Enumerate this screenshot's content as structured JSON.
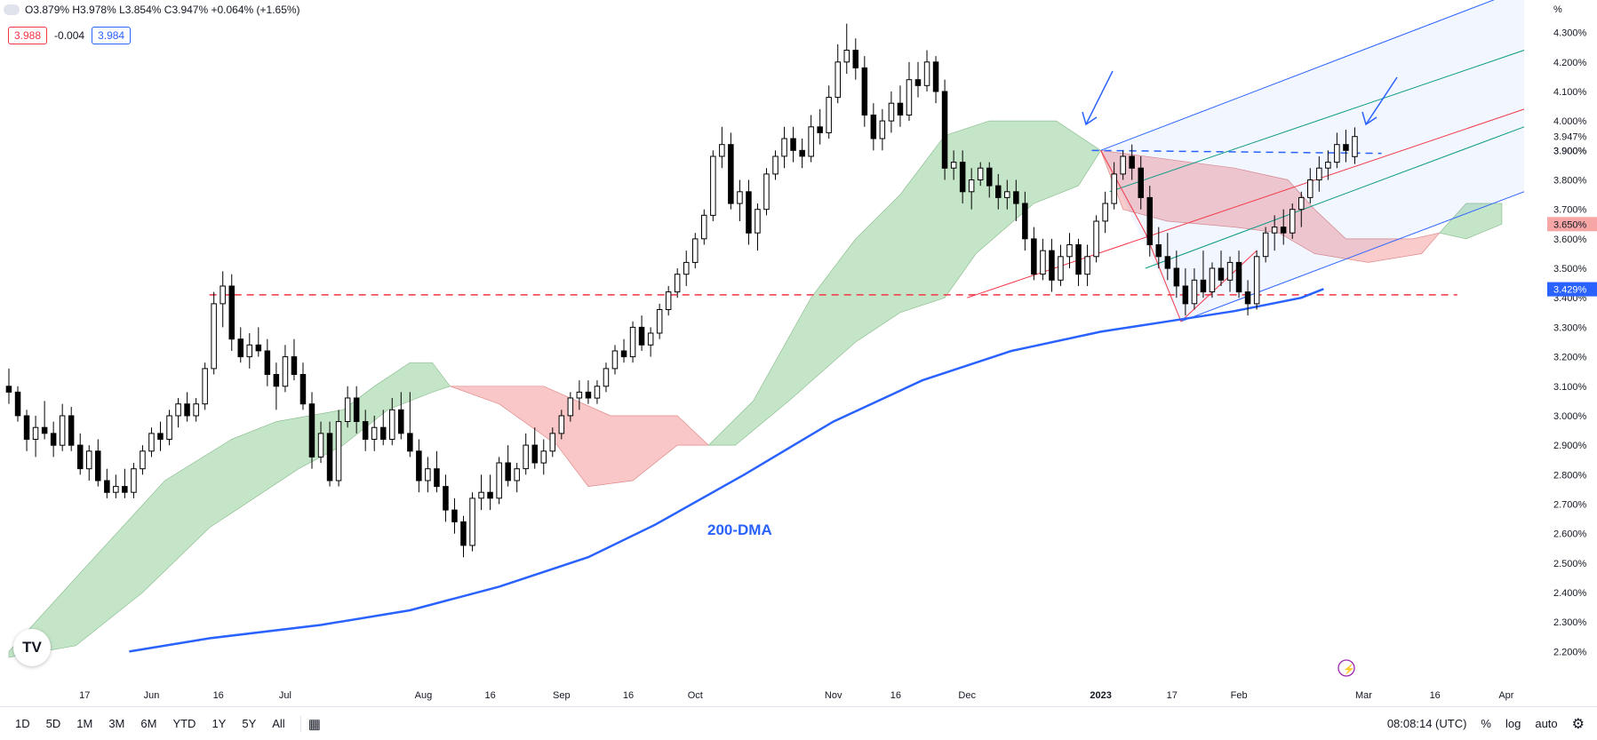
{
  "header": {
    "ohlc": "O3.879% H3.978% L3.854% C3.947% +0.064% (+1.65%)",
    "bid": "3.988",
    "spread": "-0.004",
    "ask": "3.984"
  },
  "annotation_label": "200-DMA",
  "bottom_bar": {
    "ranges": [
      "1D",
      "5D",
      "1M",
      "3M",
      "6M",
      "YTD",
      "1Y",
      "5Y",
      "All"
    ],
    "time": "08:08:14 (UTC)",
    "percent": "%",
    "log": "log",
    "auto": "auto"
  },
  "colors": {
    "up_candle": "#ffffff",
    "down_candle": "#000000",
    "cloud_bull": "#b7dfbb",
    "cloud_bear": "#f7b9b9",
    "dma": "#2962ff",
    "support": "#f23645",
    "tag_last": "#f23645",
    "tag_dma": "#2962ff"
  },
  "chart_data": {
    "type": "candlestick",
    "y_unit": "%",
    "ylim": [
      2.15,
      4.35
    ],
    "y_ticks": [
      "4.300%",
      "4.200%",
      "4.100%",
      "4.000%",
      "3.900%",
      "3.800%",
      "3.700%",
      "3.600%",
      "3.500%",
      "3.400%",
      "3.300%",
      "3.200%",
      "3.100%",
      "3.000%",
      "2.900%",
      "2.800%",
      "2.700%",
      "2.600%",
      "2.500%",
      "2.400%",
      "2.300%",
      "2.200%"
    ],
    "y_axis_unit_label": "%",
    "x_ticks": [
      "17",
      "Jun",
      "16",
      "Jul",
      "Aug",
      "16",
      "Sep",
      "16",
      "Oct",
      "Nov",
      "16",
      "Dec",
      "2023",
      "17",
      "Feb",
      "Mar",
      "16",
      "Apr"
    ],
    "x_tick_days": [
      -228,
      -213,
      -198,
      -183,
      -152,
      -137,
      -121,
      -106,
      -91,
      -60,
      -46,
      -30,
      0,
      16,
      31,
      59,
      75,
      91
    ],
    "x_range_days": [
      -245,
      95
    ],
    "price_tags": [
      {
        "label": "3.947%",
        "value": 3.947,
        "style": "plain"
      },
      {
        "label": "3.900%",
        "value": 3.9,
        "style": "plain"
      },
      {
        "label": "3.650%",
        "value": 3.65,
        "style": "cloud"
      },
      {
        "label": "3.429%",
        "value": 3.429,
        "style": "dma"
      }
    ],
    "series": [
      {
        "name": "200-DMA",
        "kind": "line",
        "points": [
          [
            -218,
            2.2
          ],
          [
            -200,
            2.245
          ],
          [
            -175,
            2.29
          ],
          [
            -155,
            2.34
          ],
          [
            -135,
            2.42
          ],
          [
            -115,
            2.52
          ],
          [
            -100,
            2.63
          ],
          [
            -80,
            2.8
          ],
          [
            -60,
            2.98
          ],
          [
            -40,
            3.12
          ],
          [
            -20,
            3.22
          ],
          [
            0,
            3.285
          ],
          [
            15,
            3.32
          ],
          [
            30,
            3.355
          ],
          [
            45,
            3.4
          ],
          [
            50,
            3.43
          ]
        ]
      }
    ],
    "candles": [
      {
        "t": -245,
        "o": 3.1,
        "h": 3.16,
        "l": 3.04,
        "c": 3.08
      },
      {
        "t": -243,
        "o": 3.08,
        "h": 3.1,
        "l": 2.98,
        "c": 3.0
      },
      {
        "t": -241,
        "o": 3.0,
        "h": 3.02,
        "l": 2.88,
        "c": 2.92
      },
      {
        "t": -239,
        "o": 2.92,
        "h": 3.0,
        "l": 2.86,
        "c": 2.96
      },
      {
        "t": -237,
        "o": 2.96,
        "h": 3.05,
        "l": 2.92,
        "c": 2.94
      },
      {
        "t": -235,
        "o": 2.94,
        "h": 2.98,
        "l": 2.86,
        "c": 2.9
      },
      {
        "t": -233,
        "o": 2.9,
        "h": 3.04,
        "l": 2.88,
        "c": 3.0
      },
      {
        "t": -231,
        "o": 3.0,
        "h": 3.03,
        "l": 2.88,
        "c": 2.9
      },
      {
        "t": -229,
        "o": 2.9,
        "h": 2.94,
        "l": 2.8,
        "c": 2.82
      },
      {
        "t": -227,
        "o": 2.82,
        "h": 2.9,
        "l": 2.78,
        "c": 2.88
      },
      {
        "t": -225,
        "o": 2.88,
        "h": 2.92,
        "l": 2.76,
        "c": 2.78
      },
      {
        "t": -223,
        "o": 2.78,
        "h": 2.82,
        "l": 2.72,
        "c": 2.74
      },
      {
        "t": -221,
        "o": 2.74,
        "h": 2.8,
        "l": 2.72,
        "c": 2.76
      },
      {
        "t": -219,
        "o": 2.76,
        "h": 2.82,
        "l": 2.72,
        "c": 2.74
      },
      {
        "t": -217,
        "o": 2.74,
        "h": 2.84,
        "l": 2.72,
        "c": 2.82
      },
      {
        "t": -215,
        "o": 2.82,
        "h": 2.9,
        "l": 2.8,
        "c": 2.88
      },
      {
        "t": -213,
        "o": 2.88,
        "h": 2.96,
        "l": 2.86,
        "c": 2.94
      },
      {
        "t": -211,
        "o": 2.94,
        "h": 2.98,
        "l": 2.88,
        "c": 2.92
      },
      {
        "t": -209,
        "o": 2.92,
        "h": 3.02,
        "l": 2.9,
        "c": 3.0
      },
      {
        "t": -207,
        "o": 3.0,
        "h": 3.06,
        "l": 2.96,
        "c": 3.04
      },
      {
        "t": -205,
        "o": 3.04,
        "h": 3.08,
        "l": 2.98,
        "c": 3.0
      },
      {
        "t": -203,
        "o": 3.0,
        "h": 3.06,
        "l": 2.98,
        "c": 3.04
      },
      {
        "t": -201,
        "o": 3.04,
        "h": 3.18,
        "l": 3.02,
        "c": 3.16
      },
      {
        "t": -199,
        "o": 3.16,
        "h": 3.42,
        "l": 3.14,
        "c": 3.38
      },
      {
        "t": -197,
        "o": 3.38,
        "h": 3.49,
        "l": 3.3,
        "c": 3.44
      },
      {
        "t": -195,
        "o": 3.44,
        "h": 3.48,
        "l": 3.22,
        "c": 3.26
      },
      {
        "t": -193,
        "o": 3.26,
        "h": 3.3,
        "l": 3.18,
        "c": 3.2
      },
      {
        "t": -191,
        "o": 3.2,
        "h": 3.28,
        "l": 3.16,
        "c": 3.24
      },
      {
        "t": -189,
        "o": 3.24,
        "h": 3.3,
        "l": 3.2,
        "c": 3.22
      },
      {
        "t": -187,
        "o": 3.22,
        "h": 3.26,
        "l": 3.1,
        "c": 3.14
      },
      {
        "t": -185,
        "o": 3.14,
        "h": 3.18,
        "l": 3.02,
        "c": 3.1
      },
      {
        "t": -183,
        "o": 3.1,
        "h": 3.24,
        "l": 3.08,
        "c": 3.2
      },
      {
        "t": -181,
        "o": 3.2,
        "h": 3.26,
        "l": 3.12,
        "c": 3.14
      },
      {
        "t": -179,
        "o": 3.14,
        "h": 3.18,
        "l": 3.02,
        "c": 3.04
      },
      {
        "t": -177,
        "o": 3.04,
        "h": 3.08,
        "l": 2.82,
        "c": 2.86
      },
      {
        "t": -175,
        "o": 2.86,
        "h": 2.98,
        "l": 2.84,
        "c": 2.94
      },
      {
        "t": -173,
        "o": 2.94,
        "h": 2.98,
        "l": 2.76,
        "c": 2.78
      },
      {
        "t": -171,
        "o": 2.78,
        "h": 3.02,
        "l": 2.76,
        "c": 2.98
      },
      {
        "t": -169,
        "o": 2.98,
        "h": 3.1,
        "l": 2.96,
        "c": 3.06
      },
      {
        "t": -167,
        "o": 3.06,
        "h": 3.1,
        "l": 2.94,
        "c": 2.98
      },
      {
        "t": -165,
        "o": 2.98,
        "h": 3.02,
        "l": 2.88,
        "c": 2.92
      },
      {
        "t": -163,
        "o": 2.92,
        "h": 3.0,
        "l": 2.88,
        "c": 2.96
      },
      {
        "t": -161,
        "o": 2.96,
        "h": 3.02,
        "l": 2.9,
        "c": 2.92
      },
      {
        "t": -159,
        "o": 2.92,
        "h": 3.06,
        "l": 2.9,
        "c": 3.02
      },
      {
        "t": -157,
        "o": 3.02,
        "h": 3.08,
        "l": 2.92,
        "c": 2.94
      },
      {
        "t": -155,
        "o": 2.94,
        "h": 3.08,
        "l": 2.86,
        "c": 2.88
      },
      {
        "t": -153,
        "o": 2.88,
        "h": 2.92,
        "l": 2.74,
        "c": 2.78
      },
      {
        "t": -151,
        "o": 2.78,
        "h": 2.86,
        "l": 2.74,
        "c": 2.82
      },
      {
        "t": -149,
        "o": 2.82,
        "h": 2.88,
        "l": 2.74,
        "c": 2.76
      },
      {
        "t": -147,
        "o": 2.76,
        "h": 2.8,
        "l": 2.64,
        "c": 2.68
      },
      {
        "t": -145,
        "o": 2.68,
        "h": 2.72,
        "l": 2.6,
        "c": 2.64
      },
      {
        "t": -143,
        "o": 2.64,
        "h": 2.66,
        "l": 2.52,
        "c": 2.56
      },
      {
        "t": -141,
        "o": 2.56,
        "h": 2.74,
        "l": 2.54,
        "c": 2.72
      },
      {
        "t": -139,
        "o": 2.72,
        "h": 2.8,
        "l": 2.68,
        "c": 2.74
      },
      {
        "t": -137,
        "o": 2.74,
        "h": 2.8,
        "l": 2.68,
        "c": 2.72
      },
      {
        "t": -135,
        "o": 2.72,
        "h": 2.86,
        "l": 2.7,
        "c": 2.84
      },
      {
        "t": -133,
        "o": 2.84,
        "h": 2.9,
        "l": 2.76,
        "c": 2.78
      },
      {
        "t": -131,
        "o": 2.78,
        "h": 2.84,
        "l": 2.74,
        "c": 2.82
      },
      {
        "t": -129,
        "o": 2.82,
        "h": 2.94,
        "l": 2.8,
        "c": 2.9
      },
      {
        "t": -127,
        "o": 2.9,
        "h": 2.96,
        "l": 2.82,
        "c": 2.84
      },
      {
        "t": -125,
        "o": 2.84,
        "h": 2.92,
        "l": 2.8,
        "c": 2.88
      },
      {
        "t": -123,
        "o": 2.88,
        "h": 2.96,
        "l": 2.86,
        "c": 2.94
      },
      {
        "t": -121,
        "o": 2.94,
        "h": 3.02,
        "l": 2.92,
        "c": 3.0
      },
      {
        "t": -119,
        "o": 3.0,
        "h": 3.08,
        "l": 2.98,
        "c": 3.06
      },
      {
        "t": -117,
        "o": 3.06,
        "h": 3.12,
        "l": 3.02,
        "c": 3.08
      },
      {
        "t": -115,
        "o": 3.08,
        "h": 3.12,
        "l": 3.04,
        "c": 3.06
      },
      {
        "t": -113,
        "o": 3.06,
        "h": 3.12,
        "l": 3.04,
        "c": 3.1
      },
      {
        "t": -111,
        "o": 3.1,
        "h": 3.18,
        "l": 3.08,
        "c": 3.16
      },
      {
        "t": -109,
        "o": 3.16,
        "h": 3.24,
        "l": 3.14,
        "c": 3.22
      },
      {
        "t": -107,
        "o": 3.22,
        "h": 3.26,
        "l": 3.18,
        "c": 3.2
      },
      {
        "t": -105,
        "o": 3.2,
        "h": 3.32,
        "l": 3.18,
        "c": 3.3
      },
      {
        "t": -103,
        "o": 3.3,
        "h": 3.34,
        "l": 3.22,
        "c": 3.24
      },
      {
        "t": -101,
        "o": 3.24,
        "h": 3.3,
        "l": 3.2,
        "c": 3.28
      },
      {
        "t": -99,
        "o": 3.28,
        "h": 3.38,
        "l": 3.26,
        "c": 3.36
      },
      {
        "t": -97,
        "o": 3.36,
        "h": 3.44,
        "l": 3.34,
        "c": 3.42
      },
      {
        "t": -95,
        "o": 3.42,
        "h": 3.5,
        "l": 3.4,
        "c": 3.48
      },
      {
        "t": -93,
        "o": 3.48,
        "h": 3.56,
        "l": 3.44,
        "c": 3.52
      },
      {
        "t": -91,
        "o": 3.52,
        "h": 3.62,
        "l": 3.5,
        "c": 3.6
      },
      {
        "t": -89,
        "o": 3.6,
        "h": 3.7,
        "l": 3.58,
        "c": 3.68
      },
      {
        "t": -87,
        "o": 3.68,
        "h": 3.9,
        "l": 3.66,
        "c": 3.88
      },
      {
        "t": -85,
        "o": 3.88,
        "h": 3.98,
        "l": 3.84,
        "c": 3.92
      },
      {
        "t": -83,
        "o": 3.92,
        "h": 3.96,
        "l": 3.7,
        "c": 3.72
      },
      {
        "t": -81,
        "o": 3.72,
        "h": 3.8,
        "l": 3.66,
        "c": 3.76
      },
      {
        "t": -79,
        "o": 3.76,
        "h": 3.8,
        "l": 3.58,
        "c": 3.62
      },
      {
        "t": -77,
        "o": 3.62,
        "h": 3.72,
        "l": 3.56,
        "c": 3.7
      },
      {
        "t": -75,
        "o": 3.7,
        "h": 3.84,
        "l": 3.68,
        "c": 3.82
      },
      {
        "t": -73,
        "o": 3.82,
        "h": 3.9,
        "l": 3.8,
        "c": 3.88
      },
      {
        "t": -71,
        "o": 3.88,
        "h": 3.98,
        "l": 3.84,
        "c": 3.94
      },
      {
        "t": -69,
        "o": 3.94,
        "h": 3.98,
        "l": 3.86,
        "c": 3.9
      },
      {
        "t": -67,
        "o": 3.9,
        "h": 3.94,
        "l": 3.84,
        "c": 3.88
      },
      {
        "t": -65,
        "o": 3.88,
        "h": 4.02,
        "l": 3.86,
        "c": 3.98
      },
      {
        "t": -63,
        "o": 3.98,
        "h": 4.04,
        "l": 3.92,
        "c": 3.96
      },
      {
        "t": -61,
        "o": 3.96,
        "h": 4.12,
        "l": 3.94,
        "c": 4.08
      },
      {
        "t": -59,
        "o": 4.08,
        "h": 4.26,
        "l": 4.06,
        "c": 4.2
      },
      {
        "t": -57,
        "o": 4.2,
        "h": 4.33,
        "l": 4.16,
        "c": 4.24
      },
      {
        "t": -55,
        "o": 4.24,
        "h": 4.28,
        "l": 4.14,
        "c": 4.18
      },
      {
        "t": -53,
        "o": 4.18,
        "h": 4.22,
        "l": 3.98,
        "c": 4.02
      },
      {
        "t": -51,
        "o": 4.02,
        "h": 4.06,
        "l": 3.9,
        "c": 3.94
      },
      {
        "t": -49,
        "o": 3.94,
        "h": 4.04,
        "l": 3.9,
        "c": 4.0
      },
      {
        "t": -47,
        "o": 4.0,
        "h": 4.1,
        "l": 3.96,
        "c": 4.06
      },
      {
        "t": -45,
        "o": 4.06,
        "h": 4.12,
        "l": 3.98,
        "c": 4.02
      },
      {
        "t": -43,
        "o": 4.02,
        "h": 4.2,
        "l": 4.0,
        "c": 4.14
      },
      {
        "t": -41,
        "o": 4.14,
        "h": 4.2,
        "l": 4.08,
        "c": 4.12
      },
      {
        "t": -39,
        "o": 4.12,
        "h": 4.24,
        "l": 4.1,
        "c": 4.2
      },
      {
        "t": -37,
        "o": 4.2,
        "h": 4.22,
        "l": 4.06,
        "c": 4.1
      },
      {
        "t": -35,
        "o": 4.1,
        "h": 4.14,
        "l": 3.8,
        "c": 3.84
      },
      {
        "t": -33,
        "o": 3.84,
        "h": 3.9,
        "l": 3.8,
        "c": 3.86
      },
      {
        "t": -31,
        "o": 3.86,
        "h": 3.9,
        "l": 3.72,
        "c": 3.76
      },
      {
        "t": -29,
        "o": 3.76,
        "h": 3.84,
        "l": 3.7,
        "c": 3.8
      },
      {
        "t": -27,
        "o": 3.8,
        "h": 3.86,
        "l": 3.78,
        "c": 3.84
      },
      {
        "t": -25,
        "o": 3.84,
        "h": 3.86,
        "l": 3.74,
        "c": 3.78
      },
      {
        "t": -23,
        "o": 3.78,
        "h": 3.82,
        "l": 3.7,
        "c": 3.74
      },
      {
        "t": -21,
        "o": 3.74,
        "h": 3.8,
        "l": 3.7,
        "c": 3.76
      },
      {
        "t": -19,
        "o": 3.76,
        "h": 3.8,
        "l": 3.66,
        "c": 3.72
      },
      {
        "t": -17,
        "o": 3.72,
        "h": 3.76,
        "l": 3.56,
        "c": 3.6
      },
      {
        "t": -15,
        "o": 3.6,
        "h": 3.64,
        "l": 3.46,
        "c": 3.48
      },
      {
        "t": -13,
        "o": 3.48,
        "h": 3.6,
        "l": 3.46,
        "c": 3.56
      },
      {
        "t": -11,
        "o": 3.56,
        "h": 3.6,
        "l": 3.42,
        "c": 3.46
      },
      {
        "t": -9,
        "o": 3.46,
        "h": 3.58,
        "l": 3.44,
        "c": 3.54
      },
      {
        "t": -7,
        "o": 3.54,
        "h": 3.62,
        "l": 3.5,
        "c": 3.58
      },
      {
        "t": -5,
        "o": 3.58,
        "h": 3.6,
        "l": 3.44,
        "c": 3.48
      },
      {
        "t": -3,
        "o": 3.48,
        "h": 3.58,
        "l": 3.44,
        "c": 3.54
      },
      {
        "t": -1,
        "o": 3.54,
        "h": 3.68,
        "l": 3.52,
        "c": 3.66
      },
      {
        "t": 1,
        "o": 3.66,
        "h": 3.76,
        "l": 3.62,
        "c": 3.72
      },
      {
        "t": 3,
        "o": 3.72,
        "h": 3.86,
        "l": 3.7,
        "c": 3.82
      },
      {
        "t": 5,
        "o": 3.82,
        "h": 3.9,
        "l": 3.8,
        "c": 3.88
      },
      {
        "t": 7,
        "o": 3.88,
        "h": 3.92,
        "l": 3.8,
        "c": 3.84
      },
      {
        "t": 9,
        "o": 3.84,
        "h": 3.88,
        "l": 3.7,
        "c": 3.74
      },
      {
        "t": 11,
        "o": 3.74,
        "h": 3.78,
        "l": 3.54,
        "c": 3.58
      },
      {
        "t": 13,
        "o": 3.58,
        "h": 3.64,
        "l": 3.5,
        "c": 3.54
      },
      {
        "t": 15,
        "o": 3.54,
        "h": 3.62,
        "l": 3.46,
        "c": 3.5
      },
      {
        "t": 17,
        "o": 3.5,
        "h": 3.56,
        "l": 3.4,
        "c": 3.44
      },
      {
        "t": 19,
        "o": 3.44,
        "h": 3.5,
        "l": 3.34,
        "c": 3.38
      },
      {
        "t": 21,
        "o": 3.38,
        "h": 3.5,
        "l": 3.36,
        "c": 3.46
      },
      {
        "t": 23,
        "o": 3.46,
        "h": 3.56,
        "l": 3.4,
        "c": 3.42
      },
      {
        "t": 25,
        "o": 3.42,
        "h": 3.52,
        "l": 3.4,
        "c": 3.5
      },
      {
        "t": 27,
        "o": 3.5,
        "h": 3.56,
        "l": 3.44,
        "c": 3.46
      },
      {
        "t": 29,
        "o": 3.46,
        "h": 3.54,
        "l": 3.42,
        "c": 3.52
      },
      {
        "t": 31,
        "o": 3.52,
        "h": 3.56,
        "l": 3.4,
        "c": 3.42
      },
      {
        "t": 33,
        "o": 3.42,
        "h": 3.46,
        "l": 3.34,
        "c": 3.38
      },
      {
        "t": 35,
        "o": 3.38,
        "h": 3.56,
        "l": 3.36,
        "c": 3.54
      },
      {
        "t": 37,
        "o": 3.54,
        "h": 3.64,
        "l": 3.52,
        "c": 3.62
      },
      {
        "t": 39,
        "o": 3.62,
        "h": 3.68,
        "l": 3.56,
        "c": 3.64
      },
      {
        "t": 41,
        "o": 3.64,
        "h": 3.7,
        "l": 3.58,
        "c": 3.62
      },
      {
        "t": 43,
        "o": 3.62,
        "h": 3.72,
        "l": 3.6,
        "c": 3.7
      },
      {
        "t": 45,
        "o": 3.7,
        "h": 3.76,
        "l": 3.64,
        "c": 3.74
      },
      {
        "t": 47,
        "o": 3.74,
        "h": 3.84,
        "l": 3.72,
        "c": 3.8
      },
      {
        "t": 49,
        "o": 3.8,
        "h": 3.88,
        "l": 3.76,
        "c": 3.84
      },
      {
        "t": 51,
        "o": 3.84,
        "h": 3.9,
        "l": 3.8,
        "c": 3.86
      },
      {
        "t": 53,
        "o": 3.86,
        "h": 3.96,
        "l": 3.84,
        "c": 3.92
      },
      {
        "t": 55,
        "o": 3.92,
        "h": 3.97,
        "l": 3.86,
        "c": 3.9
      },
      {
        "t": 57,
        "o": 3.879,
        "h": 3.978,
        "l": 3.854,
        "c": 3.947
      }
    ]
  }
}
